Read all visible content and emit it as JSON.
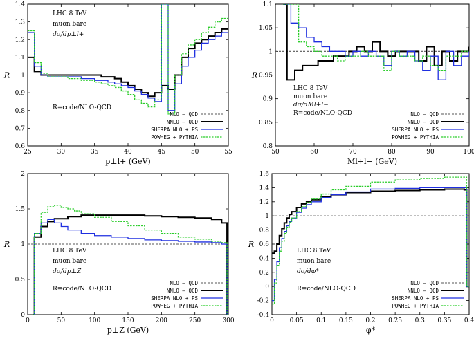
{
  "chart_data": [
    {
      "type": "line",
      "xlabel": "p⊥l+ (GeV)",
      "ylabel": "R",
      "xlim": [
        25,
        55
      ],
      "ylim": [
        0.6,
        1.4
      ],
      "xticks": [
        25,
        30,
        35,
        40,
        45,
        50,
        55
      ],
      "yticks": [
        0.6,
        0.7,
        0.8,
        0.9,
        1.0,
        1.1,
        1.2,
        1.3,
        1.4
      ],
      "annotations": [
        "LHC 8 TeV",
        "muon bare",
        "dσ/dp⊥l+",
        "R=code/NLO-QCD"
      ],
      "legend_position": "bottom-right",
      "series": [
        {
          "name": "NLO – QCD",
          "style": "ref",
          "x": [
            25,
            55
          ],
          "values": [
            1.0,
            1.0
          ]
        },
        {
          "name": "NNLO – QCD",
          "style": "black",
          "x": [
            25,
            26,
            27,
            28,
            29,
            30,
            31,
            32,
            33,
            34,
            35,
            36,
            37,
            38,
            39,
            40,
            41,
            42,
            43,
            44,
            45,
            46,
            47,
            48,
            49,
            50,
            51,
            52,
            53,
            54,
            55
          ],
          "values": [
            1.1,
            1.02,
            1.0,
            1.0,
            1.0,
            1.0,
            1.0,
            1.0,
            1.0,
            1.0,
            1.0,
            0.99,
            0.99,
            0.98,
            0.96,
            0.94,
            0.92,
            0.9,
            0.88,
            0.9,
            0.94,
            0.92,
            1.0,
            1.1,
            1.15,
            1.18,
            1.2,
            1.22,
            1.24,
            1.26,
            1.27
          ]
        },
        {
          "name": "SHERPA NLO + PS",
          "style": "blue",
          "x": [
            25,
            26,
            27,
            28,
            29,
            30,
            31,
            32,
            33,
            34,
            35,
            36,
            37,
            38,
            39,
            40,
            41,
            42,
            43,
            44,
            45,
            46,
            47,
            48,
            49,
            50,
            51,
            52,
            53,
            54,
            55
          ],
          "values": [
            1.24,
            1.05,
            1.0,
            0.99,
            0.99,
            0.99,
            0.99,
            0.99,
            0.98,
            0.98,
            0.97,
            0.97,
            0.96,
            0.95,
            0.94,
            0.93,
            0.91,
            0.89,
            0.87,
            0.85,
            1.4,
            0.8,
            0.95,
            1.05,
            1.1,
            1.14,
            1.18,
            1.2,
            1.22,
            1.24,
            1.25
          ]
        },
        {
          "name": "POWHEG + PYTHIA",
          "style": "green",
          "x": [
            25,
            26,
            27,
            28,
            29,
            30,
            31,
            32,
            33,
            34,
            35,
            36,
            37,
            38,
            39,
            40,
            41,
            42,
            43,
            44,
            45,
            46,
            47,
            48,
            49,
            50,
            51,
            52,
            53,
            54,
            55
          ],
          "values": [
            1.25,
            1.07,
            1.01,
            0.99,
            0.99,
            0.99,
            0.98,
            0.98,
            0.97,
            0.97,
            0.96,
            0.95,
            0.94,
            0.93,
            0.91,
            0.89,
            0.86,
            0.84,
            0.82,
            0.86,
            1.4,
            0.78,
            1.0,
            1.12,
            1.17,
            1.2,
            1.24,
            1.27,
            1.3,
            1.32,
            1.35
          ]
        }
      ]
    },
    {
      "type": "line",
      "xlabel": "Ml+l− (GeV)",
      "ylabel": "R",
      "xlim": [
        50,
        100
      ],
      "ylim": [
        0.8,
        1.1
      ],
      "xticks": [
        50,
        60,
        70,
        80,
        90,
        100
      ],
      "yticks": [
        0.8,
        0.85,
        0.9,
        0.95,
        1.0,
        1.05,
        1.1
      ],
      "annotations": [
        "LHC 8 TeV",
        "muon bare",
        "dσ/dMl+l−",
        "R=code/NLO-QCD"
      ],
      "legend_position": "bottom-right",
      "series": [
        {
          "name": "NLO – QCD",
          "style": "ref",
          "x": [
            50,
            100
          ],
          "values": [
            1.0,
            1.0
          ]
        },
        {
          "name": "NNLO – QCD",
          "style": "black",
          "x": [
            52,
            53,
            55,
            57,
            59,
            61,
            63,
            65,
            67,
            69,
            71,
            73,
            75,
            77,
            79,
            81,
            83,
            85,
            87,
            89,
            91,
            93,
            95,
            97,
            99,
            100
          ],
          "values": [
            1.1,
            0.94,
            0.96,
            0.97,
            0.97,
            0.98,
            0.98,
            0.99,
            0.99,
            1.0,
            1.01,
            1.0,
            1.02,
            1.0,
            0.99,
            1.0,
            1.0,
            1.0,
            0.98,
            1.01,
            0.97,
            1.0,
            0.98,
            1.0,
            1.0,
            1.01
          ]
        },
        {
          "name": "SHERPA NLO + PS",
          "style": "blue",
          "x": [
            52,
            54,
            56,
            58,
            60,
            62,
            64,
            66,
            68,
            70,
            72,
            74,
            76,
            78,
            80,
            82,
            84,
            86,
            88,
            90,
            92,
            94,
            96,
            98,
            100
          ],
          "values": [
            1.1,
            1.06,
            1.05,
            1.03,
            1.02,
            1.01,
            1.0,
            1.0,
            0.99,
            1.0,
            0.99,
            1.0,
            0.99,
            0.97,
            1.0,
            0.99,
            1.0,
            0.98,
            0.96,
            0.99,
            0.94,
            1.0,
            0.97,
            0.99,
            1.0
          ]
        },
        {
          "name": "POWHEG + PYTHIA",
          "style": "green",
          "x": [
            52,
            54,
            56,
            58,
            60,
            62,
            64,
            66,
            68,
            70,
            72,
            74,
            76,
            78,
            80,
            82,
            84,
            86,
            88,
            90,
            92,
            94,
            96,
            98,
            100
          ],
          "values": [
            1.1,
            1.1,
            1.02,
            1.01,
            1.0,
            0.99,
            0.99,
            0.98,
            0.99,
            0.99,
            1.0,
            0.99,
            0.99,
            0.96,
            1.0,
            0.99,
            0.99,
            0.98,
            0.99,
            0.97,
            0.96,
            0.99,
            0.99,
            1.0,
            1.0
          ]
        }
      ]
    },
    {
      "type": "line",
      "xlabel": "p⊥Z (GeV)",
      "ylabel": "R",
      "xlim": [
        0,
        300
      ],
      "ylim": [
        0,
        2
      ],
      "xticks": [
        0,
        50,
        100,
        150,
        200,
        250,
        300
      ],
      "yticks": [
        0,
        0.5,
        1.0,
        1.5,
        2.0
      ],
      "annotations": [
        "LHC 8 TeV",
        "muon bare",
        "dσ/dp⊥Z",
        "R=code/NLO-QCD"
      ],
      "legend_position": "bottom-right",
      "series": [
        {
          "name": "NLO – QCD",
          "style": "ref",
          "x": [
            0,
            300
          ],
          "values": [
            1.0,
            1.0
          ]
        },
        {
          "name": "NNLO – QCD",
          "style": "black",
          "x": [
            8,
            10,
            20,
            30,
            40,
            60,
            80,
            100,
            125,
            150,
            175,
            200,
            225,
            250,
            275,
            290,
            298
          ],
          "values": [
            0,
            1.1,
            1.25,
            1.32,
            1.36,
            1.39,
            1.41,
            1.41,
            1.41,
            1.41,
            1.4,
            1.39,
            1.38,
            1.37,
            1.35,
            1.3,
            0
          ]
        },
        {
          "name": "SHERPA NLO + PS",
          "style": "blue",
          "x": [
            8,
            10,
            20,
            30,
            40,
            50,
            60,
            80,
            100,
            125,
            150,
            175,
            200,
            225,
            250,
            275,
            290,
            298
          ],
          "values": [
            0,
            1.15,
            1.3,
            1.35,
            1.3,
            1.25,
            1.2,
            1.15,
            1.12,
            1.1,
            1.08,
            1.06,
            1.05,
            1.04,
            1.03,
            1.02,
            1.0,
            0
          ]
        },
        {
          "name": "POWHEG + PYTHIA",
          "style": "green",
          "x": [
            8,
            10,
            20,
            30,
            40,
            50,
            60,
            70,
            80,
            100,
            125,
            150,
            175,
            200,
            225,
            250,
            275,
            290,
            298
          ],
          "values": [
            0,
            1.15,
            1.45,
            1.53,
            1.55,
            1.52,
            1.5,
            1.47,
            1.43,
            1.38,
            1.32,
            1.26,
            1.2,
            1.15,
            1.1,
            1.07,
            1.04,
            1.02,
            0
          ]
        }
      ]
    },
    {
      "type": "line",
      "xlabel": "φ*",
      "ylabel": "R",
      "xlim": [
        0,
        0.4
      ],
      "ylim": [
        -0.4,
        1.6
      ],
      "xticks": [
        0,
        0.05,
        0.1,
        0.15,
        0.2,
        0.25,
        0.3,
        0.35,
        0.4
      ],
      "yticks": [
        -0.4,
        -0.2,
        0,
        0.2,
        0.4,
        0.6,
        0.8,
        1.0,
        1.2,
        1.4,
        1.6
      ],
      "annotations": [
        "LHC 8 TeV",
        "muon bare",
        "dσ/dφ*",
        "R=code/NLO-QCD"
      ],
      "legend_position": "bottom-right",
      "series": [
        {
          "name": "NLO – QCD",
          "style": "ref",
          "x": [
            0,
            0.39
          ],
          "values": [
            1.0,
            1.0
          ]
        },
        {
          "name": "NNLO – QCD",
          "style": "black",
          "x": [
            0,
            0.005,
            0.01,
            0.015,
            0.02,
            0.025,
            0.03,
            0.035,
            0.04,
            0.05,
            0.06,
            0.07,
            0.08,
            0.1,
            0.12,
            0.15,
            0.2,
            0.25,
            0.3,
            0.35,
            0.39,
            0.395
          ],
          "values": [
            0.47,
            0.5,
            0.6,
            0.72,
            0.82,
            0.9,
            0.97,
            1.02,
            1.06,
            1.12,
            1.17,
            1.2,
            1.23,
            1.27,
            1.3,
            1.33,
            1.35,
            1.36,
            1.37,
            1.38,
            1.37,
            0
          ]
        },
        {
          "name": "SHERPA NLO + PS",
          "style": "blue",
          "x": [
            0,
            0.005,
            0.01,
            0.015,
            0.02,
            0.025,
            0.03,
            0.035,
            0.04,
            0.05,
            0.06,
            0.07,
            0.08,
            0.1,
            0.12,
            0.15,
            0.2,
            0.25,
            0.3,
            0.35,
            0.39,
            0.395
          ],
          "values": [
            -0.2,
            0.1,
            0.35,
            0.55,
            0.68,
            0.78,
            0.86,
            0.92,
            0.97,
            1.05,
            1.11,
            1.16,
            1.2,
            1.26,
            1.3,
            1.34,
            1.38,
            1.39,
            1.4,
            1.4,
            1.4,
            0
          ]
        },
        {
          "name": "POWHEG + PYTHIA",
          "style": "green",
          "x": [
            0,
            0.005,
            0.01,
            0.015,
            0.02,
            0.025,
            0.03,
            0.035,
            0.04,
            0.05,
            0.06,
            0.07,
            0.08,
            0.1,
            0.12,
            0.15,
            0.2,
            0.25,
            0.3,
            0.35,
            0.39,
            0.395
          ],
          "values": [
            -0.25,
            0.05,
            0.3,
            0.5,
            0.64,
            0.75,
            0.84,
            0.91,
            0.97,
            1.06,
            1.13,
            1.19,
            1.24,
            1.31,
            1.37,
            1.42,
            1.48,
            1.51,
            1.53,
            1.55,
            1.55,
            0
          ]
        }
      ]
    }
  ]
}
